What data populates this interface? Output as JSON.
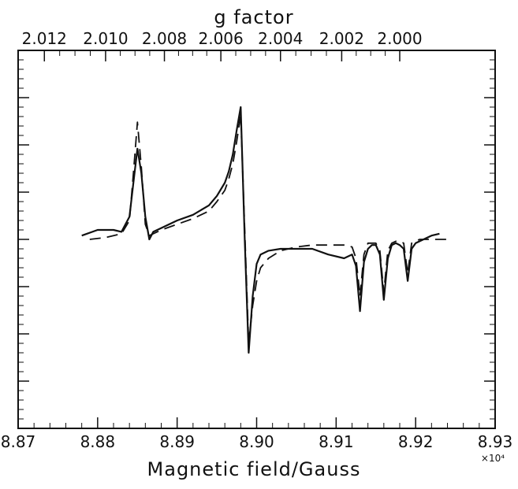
{
  "chart_data": {
    "type": "line",
    "top_axis_title": "g factor",
    "xlabel": "Magnetic field/Gauss",
    "x_multiplier": "×10⁴",
    "xlim": [
      8.87,
      8.93
    ],
    "ylim": [
      -1.0,
      1.0
    ],
    "x_ticks": [
      "8.87",
      "8.88",
      "8.89",
      "8.90",
      "8.91",
      "8.92",
      "8.93"
    ],
    "g_ticks": [
      "2.012",
      "2.010",
      "2.008",
      "2.006",
      "2.004",
      "2.002",
      "2.000"
    ],
    "g_tick_positions_x": [
      8.8733,
      8.881,
      8.8884,
      8.8955,
      8.903,
      8.9107,
      8.918
    ],
    "series": [
      {
        "style": "solid",
        "x": [
          8.878,
          8.88,
          8.882,
          8.883,
          8.884,
          8.8845,
          8.885,
          8.8855,
          8.886,
          8.8865,
          8.887,
          8.888,
          8.89,
          8.892,
          8.894,
          8.895,
          8.896,
          8.8965,
          8.897,
          8.8975,
          8.898,
          8.8985,
          8.899,
          8.8995,
          8.9,
          8.9005,
          8.9015,
          8.903,
          8.905,
          8.907,
          8.909,
          8.911,
          8.912,
          8.9125,
          8.913,
          8.9135,
          8.914,
          8.9145,
          8.915,
          8.9155,
          8.916,
          8.9165,
          8.917,
          8.9175,
          8.918,
          8.9185,
          8.919,
          8.9195,
          8.92,
          8.9205,
          8.921,
          8.922,
          8.923
        ],
        "y": [
          0.02,
          0.05,
          0.05,
          0.04,
          0.12,
          0.3,
          0.48,
          0.35,
          0.12,
          0.0,
          0.04,
          0.06,
          0.1,
          0.13,
          0.18,
          0.23,
          0.3,
          0.36,
          0.45,
          0.58,
          0.7,
          0.0,
          -0.6,
          -0.3,
          -0.13,
          -0.08,
          -0.06,
          -0.05,
          -0.05,
          -0.05,
          -0.08,
          -0.1,
          -0.08,
          -0.14,
          -0.38,
          -0.12,
          -0.05,
          -0.03,
          -0.03,
          -0.08,
          -0.32,
          -0.1,
          -0.03,
          -0.02,
          -0.03,
          -0.05,
          -0.22,
          -0.05,
          -0.02,
          -0.01,
          0.0,
          0.02,
          0.03
        ]
      },
      {
        "style": "dashed",
        "x": [
          8.879,
          8.881,
          8.883,
          8.884,
          8.8845,
          8.885,
          8.8855,
          8.886,
          8.8865,
          8.887,
          8.888,
          8.89,
          8.892,
          8.894,
          8.895,
          8.896,
          8.8965,
          8.897,
          8.8975,
          8.898,
          8.8985,
          8.899,
          8.8995,
          8.9,
          8.9005,
          8.9015,
          8.903,
          8.905,
          8.907,
          8.909,
          8.911,
          8.912,
          8.9125,
          8.913,
          8.9135,
          8.914,
          8.9145,
          8.915,
          8.9155,
          8.916,
          8.9165,
          8.917,
          8.9175,
          8.918,
          8.9185,
          8.919,
          8.9195,
          8.92,
          8.9205,
          8.921,
          8.922,
          8.924
        ],
        "y": [
          0.0,
          0.01,
          0.03,
          0.1,
          0.35,
          0.62,
          0.38,
          0.08,
          0.02,
          0.03,
          0.05,
          0.08,
          0.11,
          0.15,
          0.2,
          0.26,
          0.32,
          0.4,
          0.52,
          0.66,
          0.05,
          -0.55,
          -0.35,
          -0.22,
          -0.15,
          -0.1,
          -0.06,
          -0.04,
          -0.03,
          -0.03,
          -0.03,
          -0.04,
          -0.1,
          -0.3,
          -0.08,
          -0.02,
          -0.02,
          -0.02,
          -0.06,
          -0.28,
          -0.06,
          -0.02,
          -0.01,
          -0.01,
          -0.02,
          -0.18,
          -0.02,
          -0.01,
          0.0,
          0.0,
          0.0,
          0.0
        ]
      }
    ]
  }
}
